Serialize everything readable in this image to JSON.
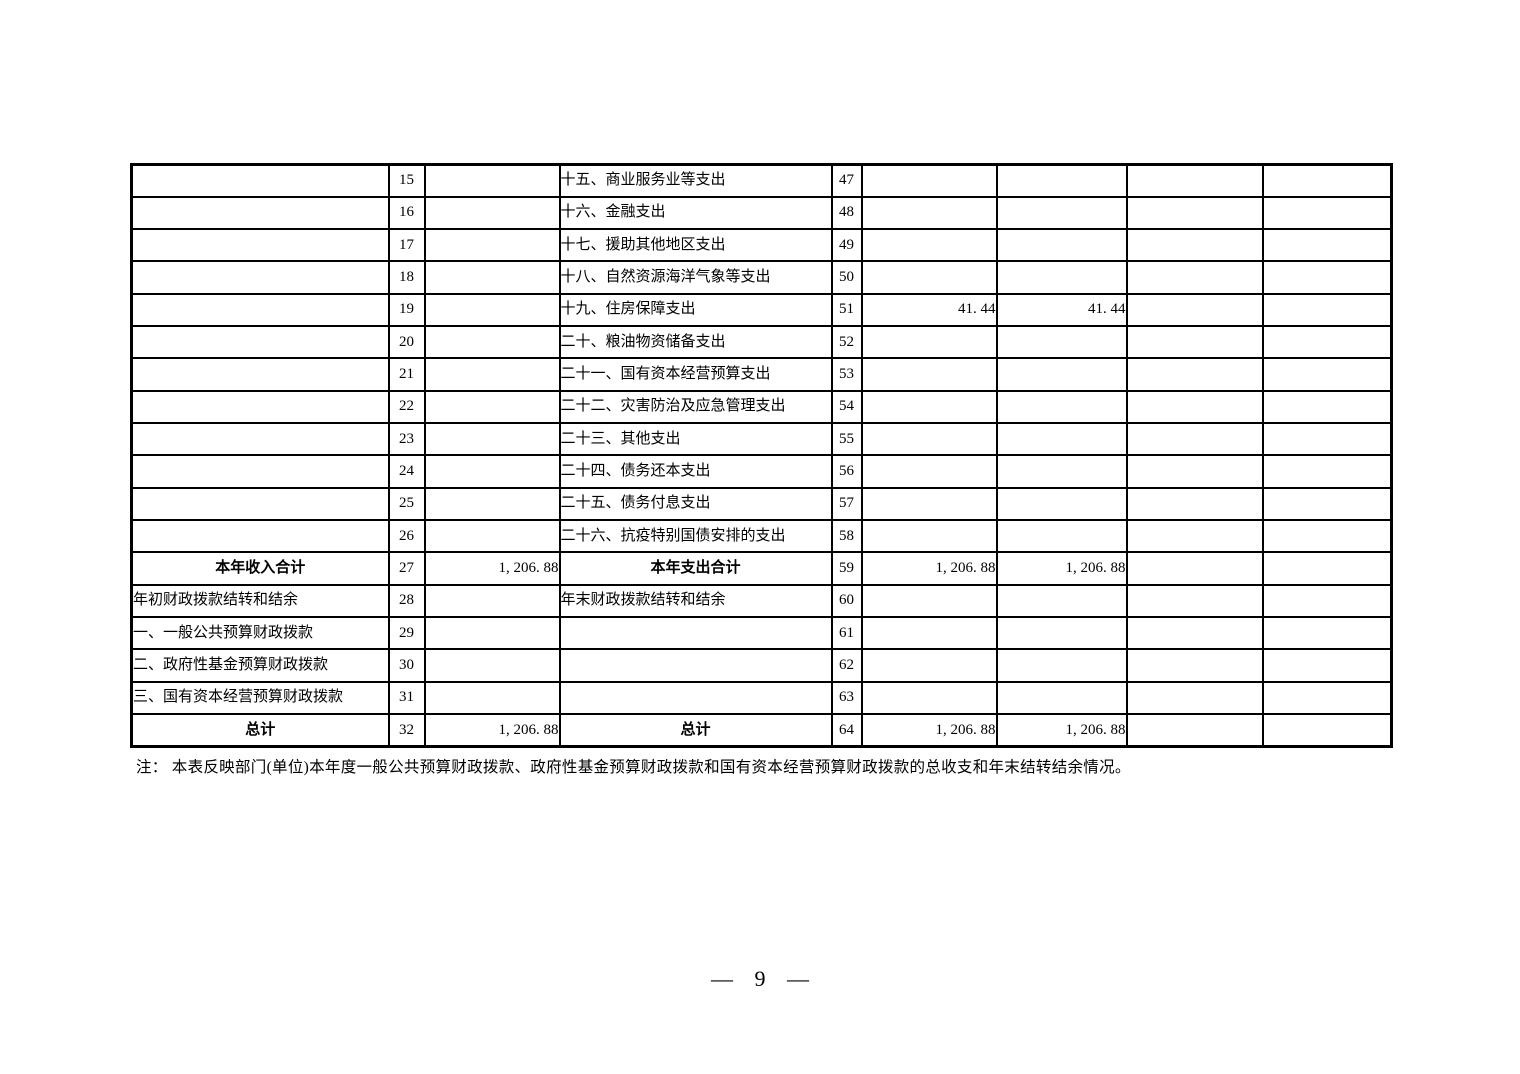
{
  "note": {
    "text": "注： 本表反映部门(单位)本年度一般公共预算财政拨款、政府性基金预算财政拨款和国有资本经营预算财政拨款的总收支和年末结转结余情况。"
  },
  "footer": {
    "page_label": "— 9 —"
  },
  "table": {
    "rows": [
      {
        "bold": false,
        "cells": [
          "",
          "15",
          "",
          "十五、商业服务业等支出",
          "47",
          "",
          "",
          "",
          ""
        ]
      },
      {
        "bold": false,
        "cells": [
          "",
          "16",
          "",
          "十六、金融支出",
          "48",
          "",
          "",
          "",
          ""
        ]
      },
      {
        "bold": false,
        "cells": [
          "",
          "17",
          "",
          "十七、援助其他地区支出",
          "49",
          "",
          "",
          "",
          ""
        ]
      },
      {
        "bold": false,
        "cells": [
          "",
          "18",
          "",
          "十八、自然资源海洋气象等支出",
          "50",
          "",
          "",
          "",
          ""
        ]
      },
      {
        "bold": false,
        "cells": [
          "",
          "19",
          "",
          "十九、住房保障支出",
          "51",
          "41. 44",
          "41. 44",
          "",
          ""
        ]
      },
      {
        "bold": false,
        "cells": [
          "",
          "20",
          "",
          "二十、粮油物资储备支出",
          "52",
          "",
          "",
          "",
          ""
        ]
      },
      {
        "bold": false,
        "cells": [
          "",
          "21",
          "",
          "二十一、国有资本经营预算支出",
          "53",
          "",
          "",
          "",
          ""
        ]
      },
      {
        "bold": false,
        "cells": [
          "",
          "22",
          "",
          "二十二、灾害防治及应急管理支出",
          "54",
          "",
          "",
          "",
          ""
        ]
      },
      {
        "bold": false,
        "cells": [
          "",
          "23",
          "",
          "二十三、其他支出",
          "55",
          "",
          "",
          "",
          ""
        ]
      },
      {
        "bold": false,
        "cells": [
          "",
          "24",
          "",
          "二十四、债务还本支出",
          "56",
          "",
          "",
          "",
          ""
        ]
      },
      {
        "bold": false,
        "cells": [
          "",
          "25",
          "",
          "二十五、债务付息支出",
          "57",
          "",
          "",
          "",
          ""
        ]
      },
      {
        "bold": false,
        "cells": [
          "",
          "26",
          "",
          "二十六、抗疫特别国债安排的支出",
          "58",
          "",
          "",
          "",
          ""
        ]
      },
      {
        "bold": true,
        "cells": [
          "本年收入合计",
          "27",
          "1, 206. 88",
          "本年支出合计",
          "59",
          "1, 206. 88",
          "1, 206. 88",
          "",
          ""
        ]
      },
      {
        "bold": false,
        "cells": [
          "年初财政拨款结转和结余",
          "28",
          "",
          "年末财政拨款结转和结余",
          "60",
          "",
          "",
          "",
          ""
        ]
      },
      {
        "bold": false,
        "cells": [
          "一、一般公共预算财政拨款",
          "29",
          "",
          "",
          "61",
          "",
          "",
          "",
          ""
        ]
      },
      {
        "bold": false,
        "cells": [
          "二、政府性基金预算财政拨款",
          "30",
          "",
          "",
          "62",
          "",
          "",
          "",
          ""
        ]
      },
      {
        "bold": false,
        "cells": [
          "三、国有资本经营预算财政拨款",
          "31",
          "",
          "",
          "63",
          "",
          "",
          "",
          ""
        ]
      },
      {
        "bold": true,
        "cells": [
          "总计",
          "32",
          "1, 206. 88",
          "总计",
          "64",
          "1, 206. 88",
          "1, 206. 88",
          "",
          ""
        ]
      }
    ]
  }
}
